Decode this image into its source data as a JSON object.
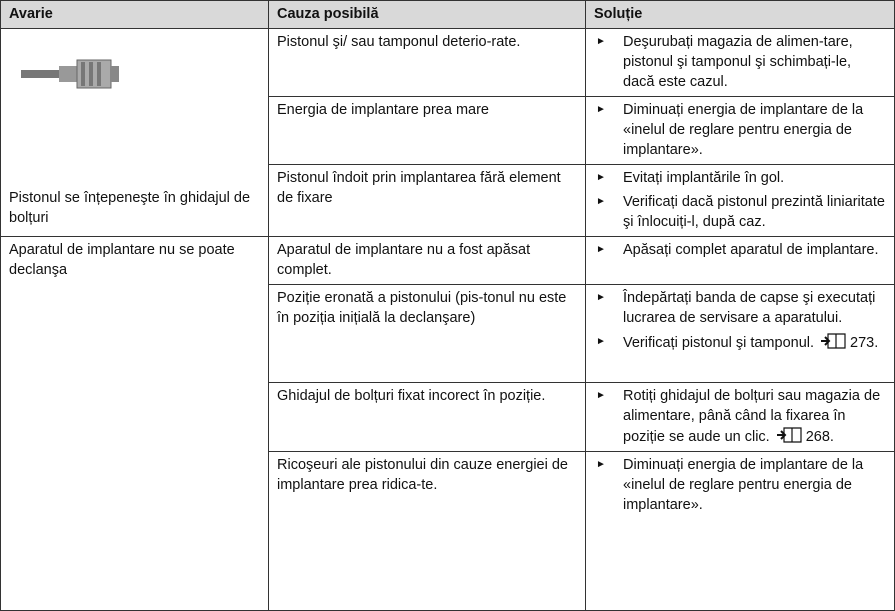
{
  "header": {
    "columns": [
      "Avarie",
      "Cauza posibilă",
      "Soluție"
    ]
  },
  "table": {
    "groups": [
      {
        "failure": "Pistonul se înțepeneşte în ghidajul de bolțuri",
        "causes": [
          {
            "cause": "Pistonul şi/ sau tamponul deterio-rate.",
            "solutions": [
              {
                "text": "Deşurubați magazia de alimen-tare, pistonul şi tamponul şi schimbați-le, dacă este cazul."
              }
            ]
          },
          {
            "cause": "Energia de implantare prea mare",
            "solutions": [
              {
                "text": "Diminuați energia de implantare de la «inelul de reglare pentru energia de implantare»."
              }
            ]
          },
          {
            "cause": "Pistonul îndoit prin implantarea fără element de fixare",
            "solutions": [
              {
                "text": "Evitați implantările în gol."
              },
              {
                "text": "Verificați dacă pistonul prezintă liniaritate şi înlocuiți-l, după caz."
              }
            ]
          }
        ]
      },
      {
        "failure": "Aparatul de implantare nu se poate declanşa",
        "causes": [
          {
            "cause": "Aparatul de implantare nu a fost apăsat complet.",
            "solutions": [
              {
                "text": "Apăsați complet aparatul de implantare."
              }
            ]
          },
          {
            "cause": "Poziție eronată a pistonului (pis-tonul nu este în poziția inițială la declanşare)",
            "solutions": [
              {
                "text": "Îndepărtați banda de capse şi executați lucrarea de servisare a aparatului."
              },
              {
                "text": "Verificați pistonul şi tamponul.",
                "ref": "273."
              }
            ]
          },
          {
            "cause": "Ghidajul de bolțuri fixat incorect în poziție.",
            "solutions": [
              {
                "text": "Rotiți ghidajul de bolțuri sau magazia de alimentare, până când la fixarea în poziție se aude un clic.",
                "ref": "268."
              }
            ]
          },
          {
            "cause": "Ricoşeuri ale pistonului din cauze energiei de implantare prea ridica-te.",
            "solutions": [
              {
                "text": "Diminuați energia de implantare de la «inelul de reglare pentru energia de implantare»."
              }
            ]
          }
        ]
      }
    ]
  }
}
